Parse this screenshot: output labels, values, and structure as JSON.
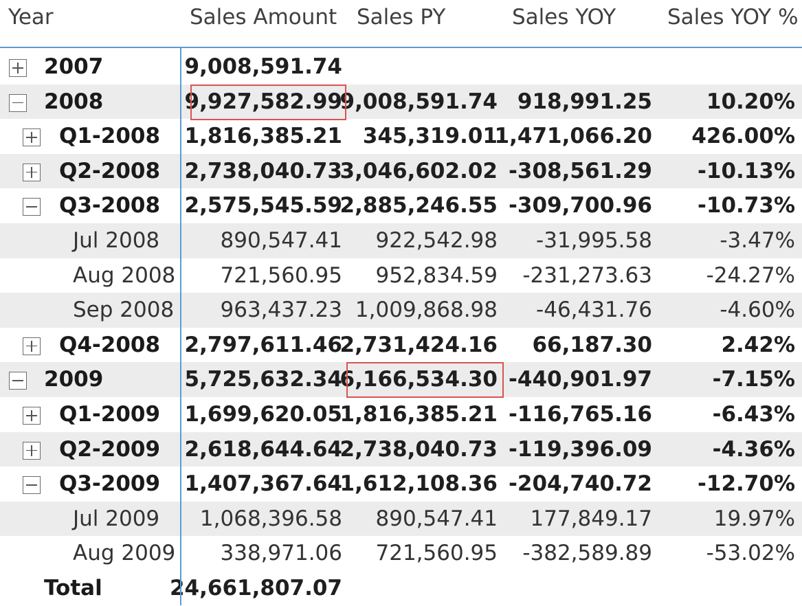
{
  "columns": {
    "year": "Year",
    "sales_amount": "Sales Amount",
    "sales_py": "Sales PY",
    "sales_yoy": "Sales YOY",
    "sales_yoy_pct": "Sales YOY %"
  },
  "rows": [
    {
      "label": "2007",
      "level": 0,
      "toggle": "plus",
      "bold": true,
      "shaded": false,
      "sales_amount": "9,008,591.74",
      "sales_py": "",
      "sales_yoy": "",
      "sales_yoy_pct": ""
    },
    {
      "label": "2008",
      "level": 0,
      "toggle": "minus",
      "bold": true,
      "shaded": true,
      "sales_amount": "9,927,582.99",
      "sales_py": "9,008,591.74",
      "sales_yoy": "918,991.25",
      "sales_yoy_pct": "10.20%"
    },
    {
      "label": "Q1-2008",
      "level": 1,
      "toggle": "plus",
      "bold": true,
      "shaded": false,
      "sales_amount": "1,816,385.21",
      "sales_py": "345,319.01",
      "sales_yoy": "1,471,066.20",
      "sales_yoy_pct": "426.00%"
    },
    {
      "label": "Q2-2008",
      "level": 1,
      "toggle": "plus",
      "bold": true,
      "shaded": true,
      "sales_amount": "2,738,040.73",
      "sales_py": "3,046,602.02",
      "sales_yoy": "-308,561.29",
      "sales_yoy_pct": "-10.13%"
    },
    {
      "label": "Q3-2008",
      "level": 1,
      "toggle": "minus",
      "bold": true,
      "shaded": false,
      "sales_amount": "2,575,545.59",
      "sales_py": "2,885,246.55",
      "sales_yoy": "-309,700.96",
      "sales_yoy_pct": "-10.73%"
    },
    {
      "label": "Jul 2008",
      "level": 2,
      "toggle": "",
      "bold": false,
      "shaded": true,
      "sales_amount": "890,547.41",
      "sales_py": "922,542.98",
      "sales_yoy": "-31,995.58",
      "sales_yoy_pct": "-3.47%"
    },
    {
      "label": "Aug 2008",
      "level": 2,
      "toggle": "",
      "bold": false,
      "shaded": false,
      "sales_amount": "721,560.95",
      "sales_py": "952,834.59",
      "sales_yoy": "-231,273.63",
      "sales_yoy_pct": "-24.27%"
    },
    {
      "label": "Sep 2008",
      "level": 2,
      "toggle": "",
      "bold": false,
      "shaded": true,
      "sales_amount": "963,437.23",
      "sales_py": "1,009,868.98",
      "sales_yoy": "-46,431.76",
      "sales_yoy_pct": "-4.60%"
    },
    {
      "label": "Q4-2008",
      "level": 1,
      "toggle": "plus",
      "bold": true,
      "shaded": false,
      "sales_amount": "2,797,611.46",
      "sales_py": "2,731,424.16",
      "sales_yoy": "66,187.30",
      "sales_yoy_pct": "2.42%"
    },
    {
      "label": "2009",
      "level": 0,
      "toggle": "minus",
      "bold": true,
      "shaded": true,
      "sales_amount": "5,725,632.34",
      "sales_py": "6,166,534.30",
      "sales_yoy": "-440,901.97",
      "sales_yoy_pct": "-7.15%"
    },
    {
      "label": "Q1-2009",
      "level": 1,
      "toggle": "plus",
      "bold": true,
      "shaded": false,
      "sales_amount": "1,699,620.05",
      "sales_py": "1,816,385.21",
      "sales_yoy": "-116,765.16",
      "sales_yoy_pct": "-6.43%"
    },
    {
      "label": "Q2-2009",
      "level": 1,
      "toggle": "plus",
      "bold": true,
      "shaded": true,
      "sales_amount": "2,618,644.64",
      "sales_py": "2,738,040.73",
      "sales_yoy": "-119,396.09",
      "sales_yoy_pct": "-4.36%"
    },
    {
      "label": "Q3-2009",
      "level": 1,
      "toggle": "minus",
      "bold": true,
      "shaded": false,
      "sales_amount": "1,407,367.64",
      "sales_py": "1,612,108.36",
      "sales_yoy": "-204,740.72",
      "sales_yoy_pct": "-12.70%"
    },
    {
      "label": "Jul 2009",
      "level": 2,
      "toggle": "",
      "bold": false,
      "shaded": true,
      "sales_amount": "1,068,396.58",
      "sales_py": "890,547.41",
      "sales_yoy": "177,849.17",
      "sales_yoy_pct": "19.97%"
    },
    {
      "label": "Aug 2009",
      "level": 2,
      "toggle": "",
      "bold": false,
      "shaded": false,
      "sales_amount": "338,971.06",
      "sales_py": "721,560.95",
      "sales_yoy": "-382,589.89",
      "sales_yoy_pct": "-53.02%"
    },
    {
      "label": "Total",
      "level": 0,
      "toggle": "",
      "bold": true,
      "shaded": false,
      "sales_amount": "24,661,807.07",
      "sales_py": "",
      "sales_yoy": "",
      "sales_yoy_pct": ""
    }
  ],
  "highlights": [
    {
      "row": 1,
      "column": "sales_amount"
    },
    {
      "row": 9,
      "column": "sales_py"
    }
  ],
  "colors": {
    "accent_line": "#5b9bd5",
    "row_shading": "#ececec",
    "highlight_border": "#d9534f"
  }
}
